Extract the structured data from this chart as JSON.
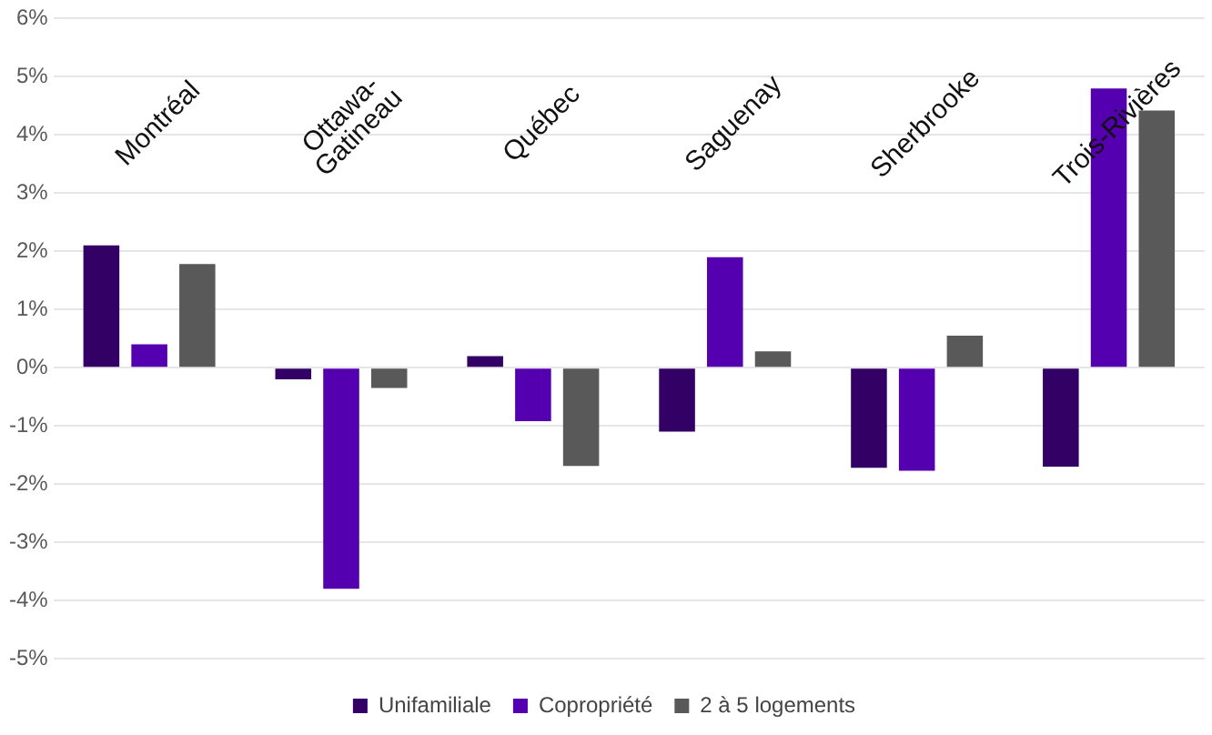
{
  "chart_data": {
    "type": "bar",
    "categories": [
      "Montréal",
      "Ottawa-\nGatineau",
      "Québec",
      "Saguenay",
      "Sherbrooke",
      "Trois-Rivières"
    ],
    "series": [
      {
        "name": "Unifamiliale",
        "color": "#330066",
        "values": [
          2.1,
          -0.2,
          0.2,
          -1.1,
          -1.72,
          -1.7
        ]
      },
      {
        "name": "Copropriété",
        "color": "#5500b0",
        "values": [
          0.4,
          -3.8,
          -0.92,
          1.9,
          -1.77,
          4.8
        ]
      },
      {
        "name": "2 à 5 logements",
        "color": "#595959",
        "values": [
          1.78,
          -0.35,
          -1.69,
          0.28,
          0.55,
          4.42
        ]
      }
    ],
    "ylim": [
      -5,
      6
    ],
    "yticks": [
      {
        "value": -5,
        "label": "-5%"
      },
      {
        "value": -4,
        "label": "-4%"
      },
      {
        "value": -3,
        "label": "-3%"
      },
      {
        "value": -2,
        "label": "-2%"
      },
      {
        "value": -1,
        "label": "-1%"
      },
      {
        "value": 0,
        "label": "0%"
      },
      {
        "value": 1,
        "label": "1%"
      },
      {
        "value": 2,
        "label": "2%"
      },
      {
        "value": 3,
        "label": "3%"
      },
      {
        "value": 4,
        "label": "4%"
      },
      {
        "value": 5,
        "label": "5%"
      },
      {
        "value": 6,
        "label": "6%"
      }
    ],
    "grid": "y",
    "legend": "bottom"
  }
}
